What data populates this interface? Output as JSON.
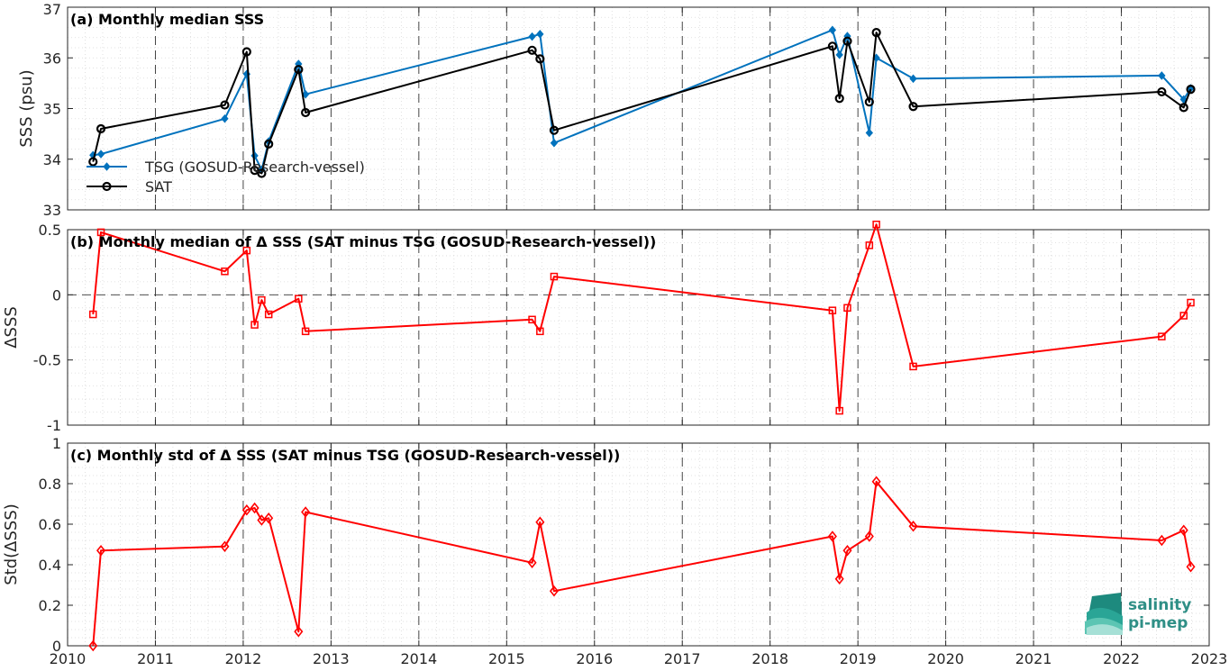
{
  "chart_data": [
    {
      "type": "line",
      "title": "(a) Monthly median SSS",
      "ylabel": "SSS (psu)",
      "xlim": [
        2010,
        2023
      ],
      "ylim": [
        33,
        37
      ],
      "yticks": [
        "33",
        "34",
        "35",
        "36",
        "37"
      ],
      "grid": true,
      "legend_position": "bottom-left",
      "series": [
        {
          "name": "TSG (GOSUD-Research-vessel)",
          "color": "#0072BD",
          "marker": "diamond-filled",
          "x": [
            2010.29,
            2010.38,
            2011.79,
            2012.04,
            2012.13,
            2012.21,
            2012.29,
            2012.63,
            2012.71,
            2015.29,
            2015.38,
            2015.54,
            2018.71,
            2018.79,
            2018.88,
            2019.13,
            2019.21,
            2019.63,
            2022.46,
            2022.71,
            2022.79
          ],
          "values": [
            34.08,
            34.1,
            34.8,
            35.68,
            34.07,
            33.79,
            34.35,
            35.88,
            35.28,
            36.42,
            36.47,
            34.32,
            36.55,
            36.06,
            36.43,
            34.52,
            36.0,
            35.59,
            35.65,
            35.18,
            35.4
          ]
        },
        {
          "name": "SAT",
          "color": "#000000",
          "marker": "circle-open",
          "x": [
            2010.29,
            2010.38,
            2011.79,
            2012.04,
            2012.13,
            2012.21,
            2012.29,
            2012.63,
            2012.71,
            2015.29,
            2015.38,
            2015.54,
            2018.71,
            2018.79,
            2018.88,
            2019.13,
            2019.21,
            2019.63,
            2022.46,
            2022.71,
            2022.79
          ],
          "values": [
            33.95,
            34.6,
            35.07,
            36.12,
            33.78,
            33.72,
            34.3,
            35.77,
            34.92,
            36.15,
            35.98,
            34.57,
            36.23,
            35.2,
            36.33,
            35.13,
            36.5,
            35.04,
            35.33,
            35.02,
            35.38
          ]
        }
      ]
    },
    {
      "type": "line",
      "title": "(b) Monthly median of Δ SSS (SAT minus TSG (GOSUD-Research-vessel))",
      "ylabel": "ΔSSS",
      "xlim": [
        2010,
        2023
      ],
      "ylim": [
        -1,
        0.5
      ],
      "yticks": [
        "-1",
        "-0.5",
        "0",
        "0.5"
      ],
      "zero_line": true,
      "grid": true,
      "series": [
        {
          "color": "#FF0000",
          "marker": "square-open",
          "x": [
            2010.29,
            2010.38,
            2011.79,
            2012.04,
            2012.13,
            2012.21,
            2012.29,
            2012.63,
            2012.71,
            2015.29,
            2015.38,
            2015.54,
            2018.71,
            2018.79,
            2018.88,
            2019.13,
            2019.21,
            2019.63,
            2022.46,
            2022.71,
            2022.79
          ],
          "values": [
            -0.15,
            0.48,
            0.18,
            0.34,
            -0.23,
            -0.04,
            -0.15,
            -0.03,
            -0.28,
            -0.19,
            -0.28,
            0.14,
            -0.12,
            -0.89,
            -0.1,
            0.38,
            0.54,
            -0.55,
            -0.32,
            -0.16,
            -0.06
          ]
        }
      ]
    },
    {
      "type": "line",
      "title": "(c) Monthly std of Δ SSS (SAT minus TSG (GOSUD-Research-vessel))",
      "ylabel": "Std(ΔSSS)",
      "xlim": [
        2010,
        2023
      ],
      "ylim": [
        0,
        1
      ],
      "yticks": [
        "0",
        "0.2",
        "0.4",
        "0.6",
        "0.8",
        "1"
      ],
      "xticks": [
        "2010",
        "2011",
        "2012",
        "2013",
        "2014",
        "2015",
        "2016",
        "2017",
        "2018",
        "2019",
        "2020",
        "2021",
        "2022",
        "2023"
      ],
      "grid": true,
      "series": [
        {
          "color": "#FF0000",
          "marker": "diamond-open",
          "x": [
            2010.29,
            2010.38,
            2011.79,
            2012.04,
            2012.13,
            2012.21,
            2012.29,
            2012.63,
            2012.71,
            2015.29,
            2015.38,
            2015.54,
            2018.71,
            2018.79,
            2018.88,
            2019.13,
            2019.21,
            2019.63,
            2022.46,
            2022.71,
            2022.79
          ],
          "values": [
            0.0,
            0.47,
            0.49,
            0.67,
            0.68,
            0.62,
            0.63,
            0.07,
            0.66,
            0.41,
            0.61,
            0.27,
            0.54,
            0.33,
            0.47,
            0.54,
            0.81,
            0.59,
            0.52,
            0.57,
            0.39
          ]
        }
      ]
    }
  ],
  "logo": {
    "line1": "salinity",
    "line2": "pi-mep"
  }
}
